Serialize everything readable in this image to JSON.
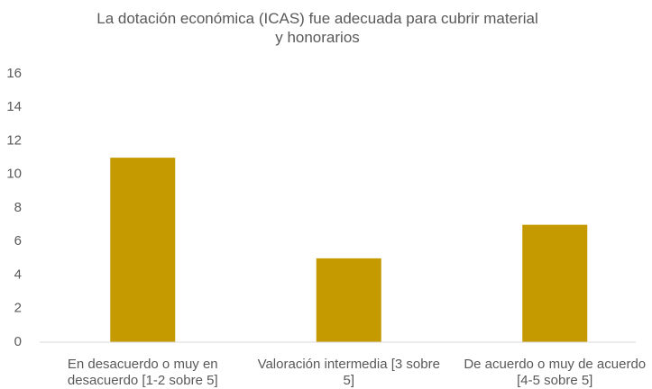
{
  "chart_data": {
    "type": "bar",
    "title": "La dotación económica (ICAS) fue adecuada para cubrir material y honorarios",
    "categories": [
      "En desacuerdo o muy en desacuerdo [1-2 sobre 5]",
      "Valoración intermedia [3 sobre 5]",
      "De acuerdo o muy de acuerdo [4-5 sobre 5]"
    ],
    "values": [
      11,
      5,
      7
    ],
    "color": "#c49a00",
    "ylim": [
      0,
      16
    ],
    "yticks": [
      0,
      2,
      4,
      6,
      8,
      10,
      12,
      14,
      16
    ],
    "grid": false
  }
}
